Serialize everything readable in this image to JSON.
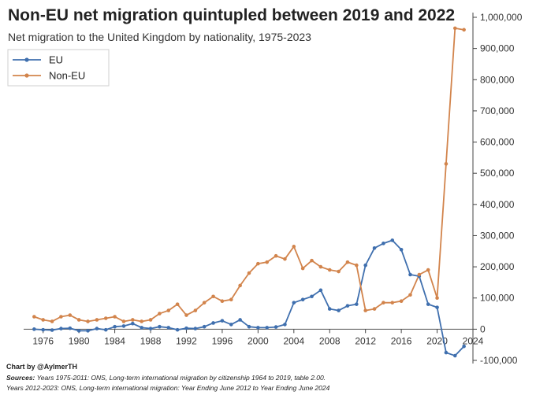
{
  "chart_data": {
    "type": "line",
    "title": "Non-EU net migration quintupled between 2019 and 2022",
    "subtitle": "Net migration to the United Kingdom by nationality, 1975-2023",
    "xlabel": "",
    "ylabel": "",
    "xlim": [
      1974,
      2024
    ],
    "ylim": [
      -100000,
      1000000
    ],
    "x_ticks": [
      1976,
      1980,
      1984,
      1988,
      1992,
      1996,
      2000,
      2004,
      2008,
      2012,
      2016,
      2020,
      2024
    ],
    "y_ticks": [
      -100000,
      0,
      100000,
      200000,
      300000,
      400000,
      500000,
      600000,
      700000,
      800000,
      900000,
      1000000
    ],
    "y_tick_labels": [
      "-100,000",
      "0",
      "100,000",
      "200,000",
      "300,000",
      "400,000",
      "500,000",
      "600,000",
      "700,000",
      "800,000",
      "900,000",
      "1,000,000"
    ],
    "x": [
      1975,
      1976,
      1977,
      1978,
      1979,
      1980,
      1981,
      1982,
      1983,
      1984,
      1985,
      1986,
      1987,
      1988,
      1989,
      1990,
      1991,
      1992,
      1993,
      1994,
      1995,
      1996,
      1997,
      1998,
      1999,
      2000,
      2001,
      2002,
      2003,
      2004,
      2005,
      2006,
      2007,
      2008,
      2009,
      2010,
      2011,
      2012,
      2013,
      2014,
      2015,
      2016,
      2017,
      2018,
      2019,
      2020,
      2021,
      2022,
      2023
    ],
    "series": [
      {
        "name": "EU",
        "color": "#3f6fae",
        "values": [
          0,
          -2000,
          -3000,
          2000,
          3000,
          -5000,
          -5000,
          2000,
          -2000,
          8000,
          10000,
          18000,
          5000,
          2000,
          8000,
          5000,
          -2000,
          3000,
          2000,
          8000,
          20000,
          27000,
          15000,
          30000,
          8000,
          5000,
          5000,
          7000,
          15000,
          85000,
          95000,
          105000,
          125000,
          65000,
          60000,
          75000,
          80000,
          205000,
          260000,
          275000,
          285000,
          255000,
          175000,
          170000,
          80000,
          70000,
          -75000,
          -85000,
          -55000
        ]
      },
      {
        "name": "Non-EU",
        "color": "#d2844c",
        "values": [
          40000,
          30000,
          25000,
          40000,
          45000,
          30000,
          25000,
          30000,
          35000,
          40000,
          25000,
          30000,
          25000,
          30000,
          50000,
          60000,
          80000,
          45000,
          60000,
          85000,
          105000,
          90000,
          95000,
          140000,
          180000,
          210000,
          215000,
          235000,
          225000,
          265000,
          195000,
          220000,
          200000,
          190000,
          185000,
          215000,
          205000,
          60000,
          65000,
          85000,
          85000,
          90000,
          110000,
          175000,
          190000,
          100000,
          530000,
          965000,
          960000
        ]
      }
    ],
    "legend": "top-left"
  },
  "footer": {
    "credit": "Chart by @AylmerTH",
    "sources_label": "Sources:",
    "sources_line1": "Years 1975-2011: ONS, Long-term international migration by citizenship 1964 to 2019, table 2.00.",
    "sources_line2": "Years 2012-2023: ONS, Long-term international migration: Year Ending June 2012 to Year Ending June 2024"
  }
}
